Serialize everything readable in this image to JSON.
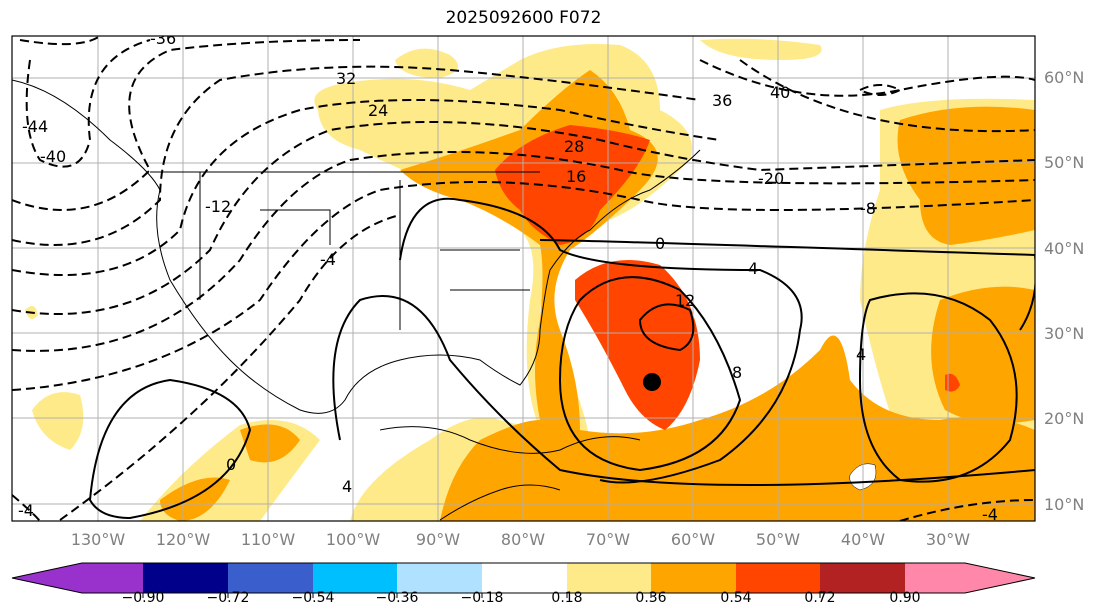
{
  "title": "2025092600 F072",
  "lon_labels": [
    "130°W",
    "120°W",
    "110°W",
    "100°W",
    "90°W",
    "80°W",
    "70°W",
    "60°W",
    "50°W",
    "40°W",
    "30°W"
  ],
  "lat_labels": [
    "60°N",
    "50°N",
    "40°N",
    "30°N",
    "20°N",
    "10°N"
  ],
  "colorbar": {
    "ticks": [
      "−0.90",
      "−0.72",
      "−0.54",
      "−0.36",
      "−0.18",
      "0.18",
      "0.36",
      "0.54",
      "0.72",
      "0.90"
    ],
    "colors": [
      "#9932cc",
      "#00008b",
      "#3a5fcd",
      "#00bfff",
      "#b0e2ff",
      "#ffffff",
      "#ffea8a",
      "#ffa500",
      "#ff4500",
      "#b22222",
      "#ff88aa"
    ]
  },
  "contour_labels": [
    {
      "text": "-36"
    },
    {
      "text": "32"
    },
    {
      "text": "24"
    },
    {
      "text": "28"
    },
    {
      "text": "16"
    },
    {
      "text": "-12"
    },
    {
      "text": "-4"
    },
    {
      "text": "-44"
    },
    {
      "text": "-40"
    },
    {
      "text": "36"
    },
    {
      "text": "40"
    },
    {
      "text": "-20"
    },
    {
      "text": "-8"
    },
    {
      "text": "0"
    },
    {
      "text": "4"
    },
    {
      "text": "12"
    },
    {
      "text": "8"
    },
    {
      "text": "4"
    },
    {
      "text": "0"
    },
    {
      "text": "4"
    },
    {
      "text": "-4"
    },
    {
      "text": "-4"
    }
  ],
  "storm_marker": "black-dot"
}
